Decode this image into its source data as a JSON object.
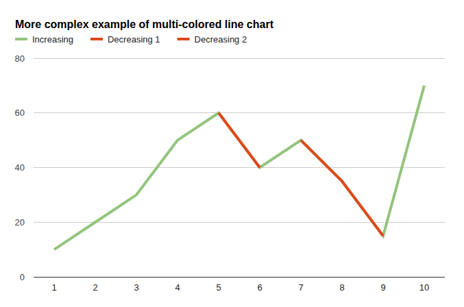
{
  "chart_data": {
    "type": "line",
    "title": "More complex example of multi-colored line chart",
    "categories": [
      "1",
      "2",
      "3",
      "4",
      "5",
      "6",
      "7",
      "8",
      "9",
      "10"
    ],
    "series": [
      {
        "name": "Increasing",
        "color": "#93c47d",
        "values": [
          10,
          20,
          30,
          50,
          60,
          40,
          50,
          35,
          15,
          70
        ]
      },
      {
        "name": "Decreasing 1",
        "color": "#dc4a1b",
        "values": [
          null,
          null,
          null,
          null,
          60,
          40,
          null,
          null,
          null,
          null
        ]
      },
      {
        "name": "Decreasing 2",
        "color": "#dc4a1b",
        "values": [
          null,
          null,
          null,
          null,
          null,
          null,
          50,
          35,
          15,
          null
        ]
      }
    ],
    "ylim": [
      0,
      80
    ],
    "yticks": [
      0,
      20,
      40,
      60,
      80
    ],
    "grid": true,
    "legend": "top"
  }
}
